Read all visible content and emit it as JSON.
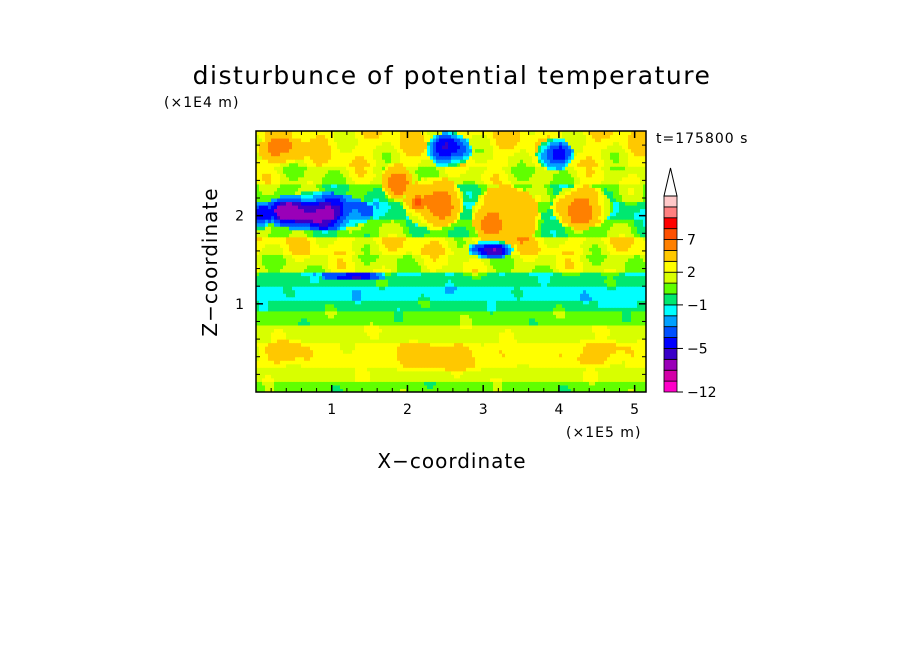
{
  "chart_data": {
    "type": "heatmap",
    "title": "disturbunce of potential temperature",
    "xlabel": "X−coordinate",
    "ylabel": "Z−coordinate",
    "x_unit": "(×1E5 m)",
    "y_unit": "(×1E4 m)",
    "time_label": "t=175800 s",
    "xlim": [
      0,
      5.15
    ],
    "ylim": [
      0,
      2.96
    ],
    "x_ticks": [
      {
        "value": 1,
        "label": "1"
      },
      {
        "value": 2,
        "label": "2"
      },
      {
        "value": 3,
        "label": "3"
      },
      {
        "value": 4,
        "label": "4"
      },
      {
        "value": 5,
        "label": "5"
      }
    ],
    "y_ticks": [
      {
        "value": 1,
        "label": "1"
      },
      {
        "value": 2,
        "label": "2"
      }
    ],
    "colorbar": {
      "levels": [
        -12,
        -10,
        -8,
        -6,
        -5,
        -4,
        -3,
        -2,
        -1,
        0,
        1,
        2,
        3,
        5,
        7,
        8,
        9,
        10
      ],
      "colors": [
        "#ff00c8",
        "#d400a8",
        "#9a00b8",
        "#3a00c8",
        "#0000ff",
        "#0050ff",
        "#00a0ff",
        "#00ffff",
        "#00e870",
        "#60ff00",
        "#d8ff00",
        "#ffff00",
        "#ffc800",
        "#ff8000",
        "#ff5000",
        "#ff0000",
        "#ff8080",
        "#ffc8c8"
      ],
      "labels": [
        {
          "value": -12,
          "label": "−12"
        },
        {
          "value": -5,
          "label": "−5"
        },
        {
          "value": -1,
          "label": "−1"
        },
        {
          "value": 2,
          "label": "2"
        },
        {
          "value": 7,
          "label": "7"
        }
      ],
      "extend": "max"
    },
    "bands": [
      {
        "z0": 0.0,
        "z1": 0.12,
        "value": 0.5
      },
      {
        "z0": 0.12,
        "z1": 0.3,
        "value": 1.6
      },
      {
        "z0": 0.3,
        "z1": 0.55,
        "value": 2.4
      },
      {
        "z0": 0.55,
        "z1": 0.75,
        "value": 1.6
      },
      {
        "z0": 0.75,
        "z1": 0.92,
        "value": 0.5
      },
      {
        "z0": 0.92,
        "z1": 1.05,
        "value": -0.5
      },
      {
        "z0": 1.05,
        "z1": 1.2,
        "value": -1.5
      },
      {
        "z0": 1.2,
        "z1": 1.35,
        "value": -0.5
      },
      {
        "z0": 1.35,
        "z1": 1.55,
        "value": 1.6
      },
      {
        "z0": 1.55,
        "z1": 1.75,
        "value": 2.4
      },
      {
        "z0": 1.75,
        "z1": 1.95,
        "value": 0.5
      },
      {
        "z0": 1.95,
        "z1": 2.15,
        "value": -0.5
      },
      {
        "z0": 2.15,
        "z1": 2.35,
        "value": 0.5
      },
      {
        "z0": 2.35,
        "z1": 2.55,
        "value": 1.6
      },
      {
        "z0": 2.55,
        "z1": 2.75,
        "value": 2.4
      },
      {
        "z0": 2.75,
        "z1": 2.96,
        "value": 2.6
      }
    ],
    "features": [
      {
        "x": 0.8,
        "z": 2.05,
        "rx": 0.75,
        "rz": 0.22,
        "value": -5.5
      },
      {
        "x": 0.7,
        "z": 2.05,
        "rx": 0.45,
        "rz": 0.12,
        "value": -6.5
      },
      {
        "x": 0.05,
        "z": 2.0,
        "rx": 0.15,
        "rz": 0.15,
        "value": -5.5
      },
      {
        "x": 2.55,
        "z": 2.75,
        "rx": 0.3,
        "rz": 0.2,
        "value": -5.5
      },
      {
        "x": 3.95,
        "z": 2.7,
        "rx": 0.25,
        "rz": 0.18,
        "value": -5.5
      },
      {
        "x": 2.35,
        "z": 2.15,
        "rx": 0.4,
        "rz": 0.3,
        "value": 5.5
      },
      {
        "x": 2.15,
        "z": 2.15,
        "rx": 0.1,
        "rz": 0.08,
        "value": 7.5
      },
      {
        "x": 3.3,
        "z": 2.0,
        "rx": 0.45,
        "rz": 0.35,
        "value": 5.5
      },
      {
        "x": 4.3,
        "z": 2.1,
        "rx": 0.4,
        "rz": 0.25,
        "value": 5.5
      },
      {
        "x": 1.85,
        "z": 2.4,
        "rx": 0.2,
        "rz": 0.2,
        "value": 5.5
      },
      {
        "x": 0.35,
        "z": 2.75,
        "rx": 0.35,
        "rz": 0.15,
        "value": 5.5
      },
      {
        "x": 3.1,
        "z": 1.62,
        "rx": 0.3,
        "rz": 0.1,
        "value": -5.5
      },
      {
        "x": 1.3,
        "z": 1.32,
        "rx": 0.45,
        "rz": 0.05,
        "value": -5.5
      },
      {
        "x": 2.4,
        "z": 0.4,
        "rx": 0.9,
        "rz": 0.18,
        "value": 3.5
      },
      {
        "x": 4.5,
        "z": 0.45,
        "rx": 0.5,
        "rz": 0.15,
        "value": 3.5
      },
      {
        "x": 0.4,
        "z": 0.45,
        "rx": 0.35,
        "rz": 0.15,
        "value": 3.5
      },
      {
        "x": 4.8,
        "z": 1.0,
        "rx": 0.3,
        "rz": 0.06,
        "value": -1.5
      }
    ]
  }
}
